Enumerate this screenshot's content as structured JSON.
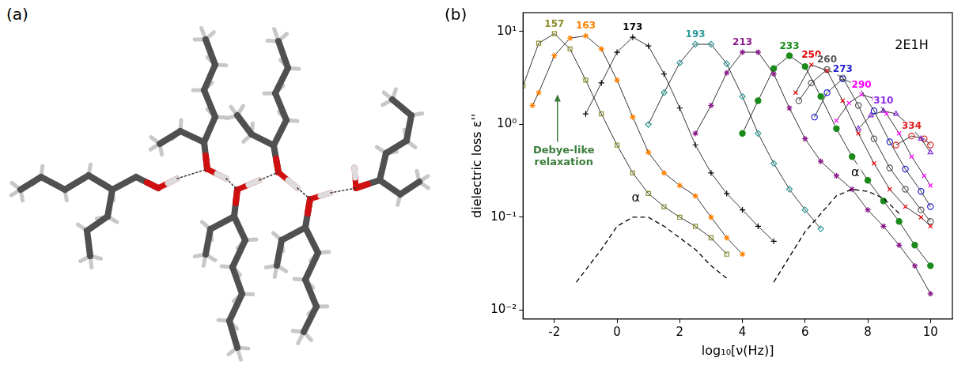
{
  "panel_labels": [
    "(a)",
    "(b)"
  ],
  "chart_data": {
    "type": "scatter",
    "x_label": "log₁₀[ν(Hz)]",
    "y_label": "dielectric loss ε''",
    "log": "y",
    "grid": false,
    "line_style": "solid",
    "xlim": [
      -3,
      10.7
    ],
    "xticks": [
      -2,
      0,
      2,
      4,
      6,
      8,
      10
    ],
    "ylim": [
      0.008,
      16
    ],
    "yticks": [
      {
        "value": 0.01,
        "label": "10⁻²"
      },
      {
        "value": 0.1,
        "label": "10⁻¹"
      },
      {
        "value": 1,
        "label": "10⁰"
      },
      {
        "value": 10,
        "label": "10¹"
      }
    ],
    "series": [
      {
        "name": "157",
        "color": "#8c8c2a",
        "marker": "open_square",
        "x": [
          -3,
          -2.5,
          -2,
          -1.5,
          -1,
          -0.5,
          0,
          0.5,
          1,
          1.5,
          2,
          2.5,
          3,
          3.5
        ],
        "values": [
          2.6,
          7.5,
          9.5,
          6.5,
          3.0,
          1.3,
          0.6,
          0.3,
          0.18,
          0.13,
          0.1,
          0.08,
          0.06,
          0.04
        ]
      },
      {
        "name": "163",
        "color": "#ff8000",
        "marker": "star",
        "x": [
          -2.7,
          -2.5,
          -2,
          -1.5,
          -1,
          -0.5,
          0,
          0.5,
          1,
          1.5,
          2,
          2.5,
          3,
          3.5,
          4
        ],
        "values": [
          1.6,
          2.2,
          5.5,
          8.5,
          9.0,
          6.5,
          3.0,
          1.2,
          0.5,
          0.3,
          0.22,
          0.17,
          0.1,
          0.06,
          0.04
        ]
      },
      {
        "name": "173",
        "color": "#000000",
        "marker": "plus",
        "x": [
          -1,
          -0.5,
          0,
          0.5,
          1,
          1.5,
          2,
          2.5,
          3,
          3.5,
          4,
          4.5,
          5
        ],
        "values": [
          1.3,
          2.8,
          6.0,
          8.7,
          7.0,
          3.5,
          1.5,
          0.6,
          0.3,
          0.18,
          0.12,
          0.08,
          0.055
        ]
      },
      {
        "name": "193",
        "color": "#2b9a9a",
        "marker": "open_diamond",
        "x": [
          1,
          1.5,
          2,
          2.5,
          3,
          3.5,
          4,
          4.5,
          5,
          5.5,
          6,
          6.5
        ],
        "values": [
          1.0,
          2.2,
          4.6,
          7.3,
          7.3,
          4.5,
          2.0,
          0.8,
          0.38,
          0.2,
          0.12,
          0.075
        ]
      },
      {
        "name": "213",
        "color": "#8b1a8b",
        "marker": "asterisk",
        "x": [
          2.5,
          3,
          3.5,
          4,
          4.5,
          5,
          5.5,
          6,
          6.5,
          7,
          7.5,
          8,
          8.5,
          9,
          9.5,
          10
        ],
        "values": [
          0.8,
          1.6,
          3.6,
          6.0,
          6.0,
          3.5,
          1.5,
          0.7,
          0.4,
          0.28,
          0.2,
          0.12,
          0.08,
          0.05,
          0.03,
          0.015
        ]
      },
      {
        "name": "233",
        "color": "#1a8a1a",
        "marker": "circle",
        "x": [
          4,
          4.5,
          5,
          5.5,
          6,
          6.5,
          7,
          7.5,
          8,
          8.5,
          9,
          9.5,
          10
        ],
        "values": [
          0.8,
          1.8,
          4.0,
          5.5,
          4.2,
          2.0,
          0.9,
          0.45,
          0.25,
          0.15,
          0.09,
          0.05,
          0.03
        ]
      },
      {
        "name": "250",
        "color": "#e00000",
        "marker": "x",
        "x": [
          5.7,
          6.2,
          6.7,
          7.2,
          7.7,
          8.2,
          8.7,
          9.2,
          9.7,
          10
        ],
        "values": [
          2.2,
          4.4,
          3.8,
          1.8,
          0.8,
          0.38,
          0.2,
          0.13,
          0.1,
          0.08
        ]
      },
      {
        "name": "260",
        "color": "#555555",
        "marker": "open_circle",
        "x": [
          5.8,
          6.2,
          6.7,
          7.2,
          7.7,
          8.2,
          8.7,
          9.2,
          9.7,
          10
        ],
        "values": [
          1.8,
          2.8,
          3.9,
          3.2,
          1.6,
          0.7,
          0.34,
          0.2,
          0.12,
          0.09
        ]
      },
      {
        "name": "273",
        "color": "#1f1fd0",
        "marker": "open_circle",
        "x": [
          6.3,
          6.7,
          7.2,
          7.7,
          8.2,
          8.7,
          9.2,
          9.7,
          10
        ],
        "values": [
          1.2,
          2.2,
          3.1,
          2.6,
          1.4,
          0.65,
          0.33,
          0.19,
          0.13
        ]
      },
      {
        "name": "290",
        "color": "#ff00ff",
        "marker": "x",
        "x": [
          7.0,
          7.4,
          7.8,
          8.2,
          8.6,
          9.0,
          9.4,
          9.8,
          10
        ],
        "values": [
          1.1,
          1.7,
          2.1,
          1.9,
          1.3,
          0.8,
          0.45,
          0.28,
          0.22
        ]
      },
      {
        "name": "310",
        "color": "#8a2be2",
        "marker": "open_triangle",
        "x": [
          7.7,
          8.1,
          8.5,
          8.9,
          9.3,
          9.7,
          10
        ],
        "values": [
          0.9,
          1.25,
          1.4,
          1.3,
          1.0,
          0.7,
          0.5
        ]
      },
      {
        "name": "334",
        "color": "#e02020",
        "marker": "open_circle",
        "x": [
          8.9,
          9.4,
          9.8,
          10
        ],
        "values": [
          0.6,
          0.75,
          0.7,
          0.6
        ]
      }
    ],
    "curves": [
      {
        "color": "#000000",
        "line_style": "dashed",
        "x": [
          -1.3,
          -0.5,
          0,
          0.5,
          1,
          1.5,
          2,
          2.5,
          3,
          3.5
        ],
        "values": [
          0.02,
          0.045,
          0.08,
          0.1,
          0.1,
          0.08,
          0.06,
          0.045,
          0.03,
          0.022
        ]
      },
      {
        "color": "#000000",
        "line_style": "dashed",
        "x": [
          5,
          6,
          7,
          7.5,
          8,
          8.5,
          9
        ],
        "values": [
          0.02,
          0.07,
          0.17,
          0.2,
          0.19,
          0.16,
          0.11
        ]
      }
    ],
    "annotations": [
      {
        "text": "2E1H",
        "x": 9.4,
        "y": 7
      },
      {
        "text": "Debye-like relaxation",
        "x": -1.7,
        "y": 0.45,
        "color": "#3a7d3a",
        "arrow": {
          "x": -1.9,
          "y": 2.1
        }
      },
      {
        "text": "α",
        "x": 0.6,
        "y": 0.16
      },
      {
        "text": "α",
        "x": 7.6,
        "y": 0.3
      }
    ]
  }
}
